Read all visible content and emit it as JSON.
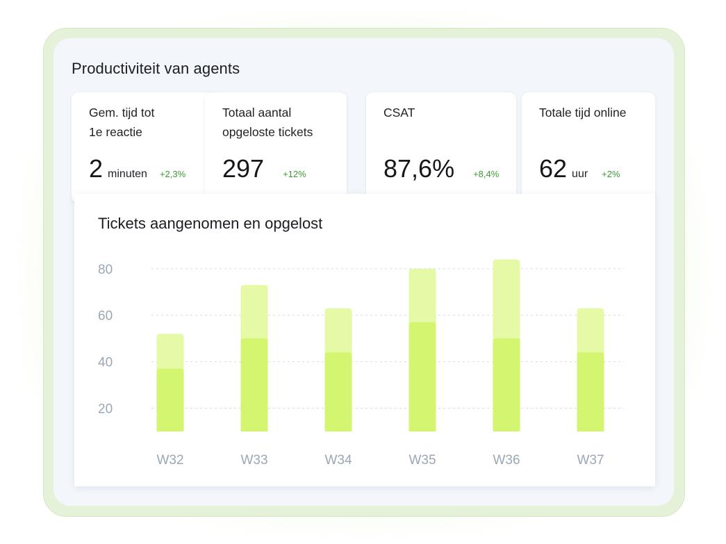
{
  "page": {
    "title": "Productiviteit van agents"
  },
  "kpis": [
    {
      "label": "Gem. tijd tot\n1e reactie",
      "value": "2",
      "unit": "minuten",
      "delta": "+2,3%"
    },
    {
      "label": "Totaal aantal\nopgeloste tickets",
      "value": "297",
      "unit": "",
      "delta": "+12%"
    },
    {
      "label": "CSAT",
      "value": "87,6%",
      "unit": "",
      "delta": "+8,4%"
    },
    {
      "label": "Totale tijd online",
      "value": "62",
      "unit": "uur",
      "delta": "+2%"
    }
  ],
  "colors": {
    "accepted": "#e6f9a6",
    "resolved": "#d3f56f",
    "grid": "#d6dbe0",
    "axis_text": "#9aa7b5",
    "delta_positive": "#3c9a32"
  },
  "chart_data": {
    "type": "bar",
    "title": "Tickets aangenomen en opgelost",
    "categories": [
      "W32",
      "W33",
      "W34",
      "W35",
      "W36",
      "W37"
    ],
    "series": [
      {
        "values": [
          52,
          73,
          63,
          80,
          84,
          63
        ]
      },
      {
        "values": [
          37,
          50,
          44,
          57,
          50,
          44
        ]
      }
    ],
    "yticks": [
      20,
      40,
      60,
      80
    ],
    "ylim": [
      10,
      88
    ],
    "grid": true,
    "overlay": true
  }
}
